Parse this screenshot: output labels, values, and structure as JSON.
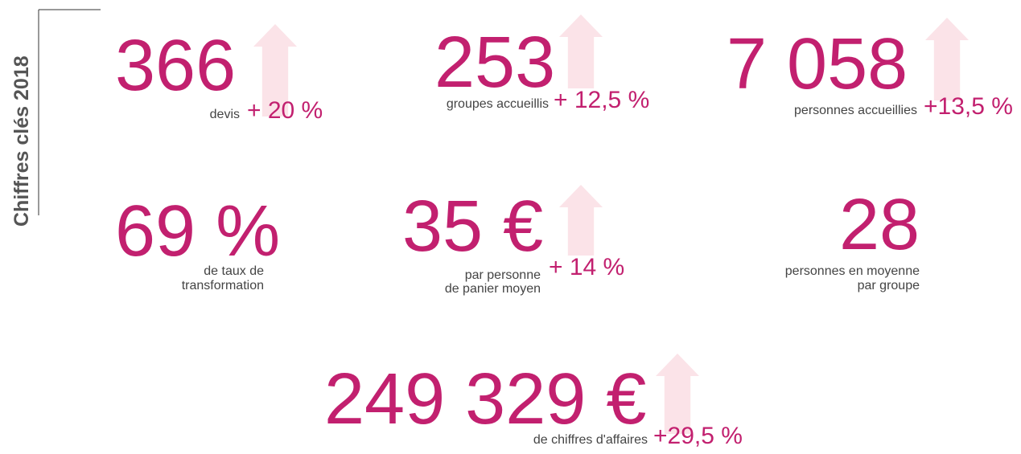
{
  "title": "Chiffres clés 2018",
  "items": [
    {
      "value": "366",
      "label": [
        "devis"
      ],
      "change": "+ 20 %"
    },
    {
      "value": "253",
      "label": [
        "groupes accueillis"
      ],
      "change": "+ 12,5 %"
    },
    {
      "value": "7 058",
      "label": [
        "personnes accueillies"
      ],
      "change": "+13,5 %"
    },
    {
      "value": "69 %",
      "label": [
        "de taux de",
        "transformation"
      ]
    },
    {
      "value": "35 €",
      "label": [
        "par personne",
        "de panier moyen"
      ],
      "change": "+ 14 %"
    },
    {
      "value": "28",
      "label": [
        "personnes en moyenne",
        "par groupe"
      ]
    },
    {
      "value": "249 329 €",
      "label": [
        "de chiffres d'affaires"
      ],
      "change": "+29,5 %"
    }
  ]
}
